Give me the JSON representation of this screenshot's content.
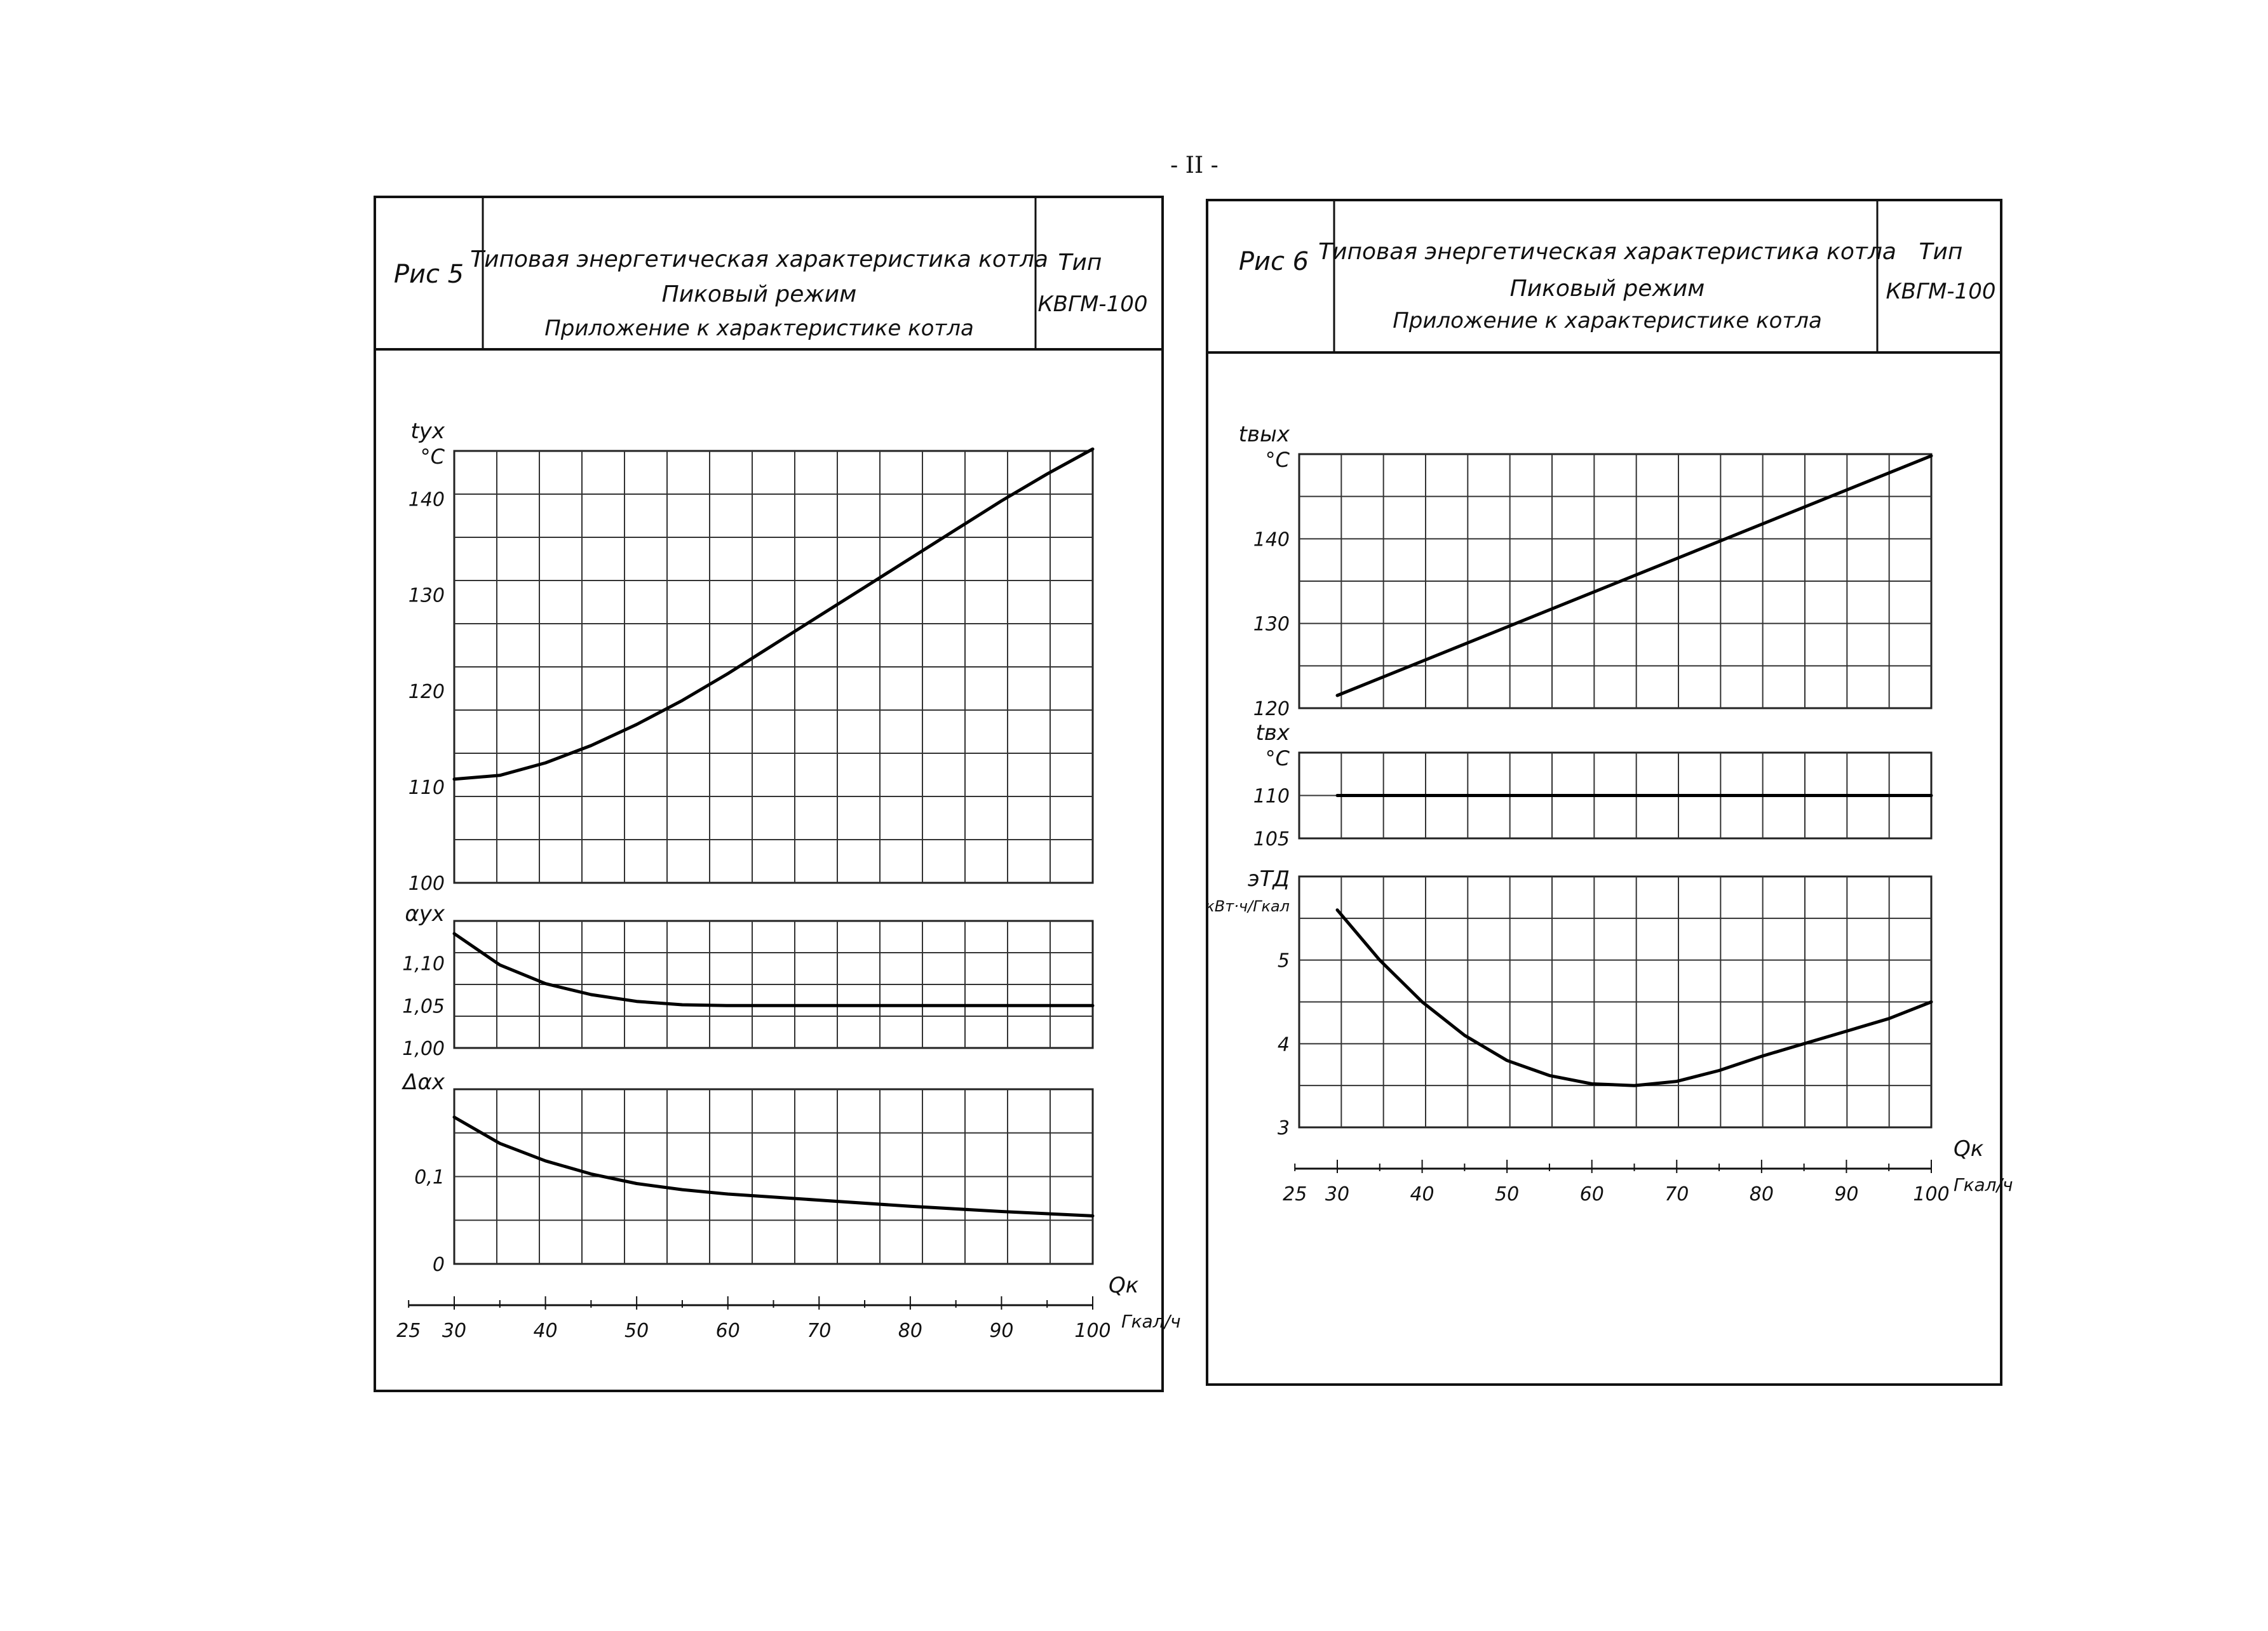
{
  "page_number": "- II -",
  "figures": [
    {
      "fig_label": "Рис 5",
      "title_line1": "Типовая энергетическая характеристика котла",
      "title_line2": "Пиковый режим",
      "title_line3": "Приложение к характеристике котла",
      "type_label": "Тип",
      "type_value": "КВГМ-100"
    },
    {
      "fig_label": "Рис 6",
      "title_line1": "Типовая энергетическая характеристика котла",
      "title_line2": "Пиковый режим",
      "title_line3": "Приложение к характеристике котла",
      "type_label": "Тип",
      "type_value": "КВГМ-100"
    }
  ],
  "chart_data": [
    {
      "type": "line",
      "figure": "Рис 5",
      "x_label": "Qк",
      "x_unit": "Гкал/ч",
      "x_ticks": [
        "25",
        "30",
        "40",
        "50",
        "60",
        "70",
        "80",
        "90",
        "100"
      ],
      "xlim": [
        30,
        100
      ],
      "panels": [
        {
          "ylabel": "tух",
          "yunit": "°C",
          "ylim": [
            100,
            145
          ],
          "y_ticks": [
            "100",
            "110",
            "120",
            "130",
            "140"
          ],
          "series": [
            {
              "x": [
                30,
                35,
                40,
                45,
                50,
                55,
                60,
                65,
                70,
                75,
                80,
                85,
                90,
                95,
                100
              ],
              "y": [
                110.8,
                111.2,
                112.5,
                114.3,
                116.5,
                119.0,
                121.8,
                124.8,
                127.8,
                130.8,
                133.8,
                136.8,
                139.8,
                142.6,
                145.2
              ]
            }
          ]
        },
        {
          "ylabel": "αух",
          "ylim": [
            1.0,
            1.15
          ],
          "y_ticks": [
            "1,00",
            "1,05",
            "1,10"
          ],
          "series": [
            {
              "x": [
                30,
                35,
                40,
                45,
                50,
                55,
                60,
                70,
                80,
                90,
                100
              ],
              "y": [
                1.135,
                1.098,
                1.076,
                1.063,
                1.055,
                1.051,
                1.05,
                1.05,
                1.05,
                1.05,
                1.05
              ]
            }
          ]
        },
        {
          "ylabel": "Δαх",
          "ylim": [
            0,
            0.2
          ],
          "y_ticks": [
            "0",
            "0,1"
          ],
          "series": [
            {
              "x": [
                30,
                35,
                40,
                45,
                50,
                55,
                60,
                70,
                80,
                90,
                100
              ],
              "y": [
                0.168,
                0.138,
                0.118,
                0.103,
                0.092,
                0.085,
                0.08,
                0.073,
                0.066,
                0.06,
                0.055
              ]
            }
          ]
        }
      ]
    },
    {
      "type": "line",
      "figure": "Рис 6",
      "x_label": "Qк",
      "x_unit": "Гкал/ч",
      "x_ticks": [
        "25",
        "30",
        "40",
        "50",
        "60",
        "70",
        "80",
        "90",
        "100"
      ],
      "xlim": [
        30,
        100
      ],
      "panels": [
        {
          "ylabel": "tвых",
          "yunit": "°C",
          "ylim": [
            120,
            150
          ],
          "y_ticks": [
            "120",
            "130",
            "140"
          ],
          "series": [
            {
              "x": [
                30,
                100
              ],
              "y": [
                121.5,
                149.8
              ]
            }
          ]
        },
        {
          "ylabel": "tвх",
          "yunit": "°C",
          "ylim": [
            105,
            115
          ],
          "y_ticks": [
            "105",
            "110"
          ],
          "series": [
            {
              "x": [
                30,
                100
              ],
              "y": [
                110,
                110
              ]
            }
          ]
        },
        {
          "ylabel": "эТД",
          "yunit": "кВт·ч/Гкал",
          "ylim": [
            3,
            6
          ],
          "y_ticks": [
            "3",
            "4",
            "5"
          ],
          "series": [
            {
              "x": [
                30,
                35,
                40,
                45,
                50,
                55,
                60,
                65,
                70,
                75,
                80,
                85,
                90,
                95,
                100
              ],
              "y": [
                5.6,
                5.0,
                4.5,
                4.1,
                3.8,
                3.62,
                3.52,
                3.5,
                3.55,
                3.68,
                3.85,
                4.0,
                4.15,
                4.3,
                4.5
              ]
            }
          ]
        }
      ]
    }
  ]
}
